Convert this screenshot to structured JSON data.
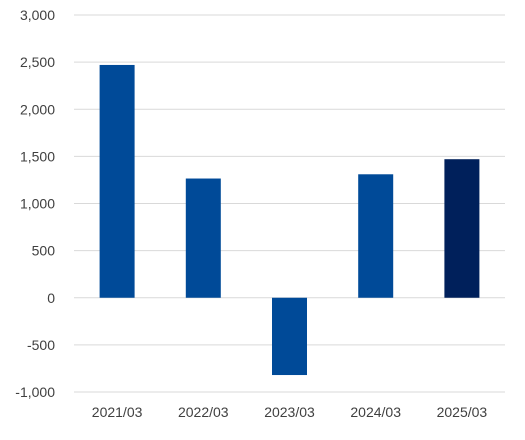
{
  "chart_data": {
    "type": "bar",
    "title": "",
    "xlabel": "",
    "ylabel": "",
    "categories": [
      "2021/03",
      "2022/03",
      "2023/03",
      "2024/03",
      "2025/03"
    ],
    "values": [
      2470,
      1265,
      -820,
      1310,
      1470
    ],
    "bar_colors": [
      "#004a98",
      "#004a98",
      "#004a98",
      "#004a98",
      "#00205b"
    ],
    "ylim": [
      -1000,
      3000
    ],
    "yticks": [
      -1000,
      -500,
      0,
      500,
      1000,
      1500,
      2000,
      2500,
      3000
    ],
    "ytick_labels": [
      "-1,000",
      "-500",
      "0",
      "500",
      "1,000",
      "1,500",
      "2,000",
      "2,500",
      "3,000"
    ],
    "grid": true,
    "gridline_color": "#d9d9d9",
    "legend": "none"
  }
}
